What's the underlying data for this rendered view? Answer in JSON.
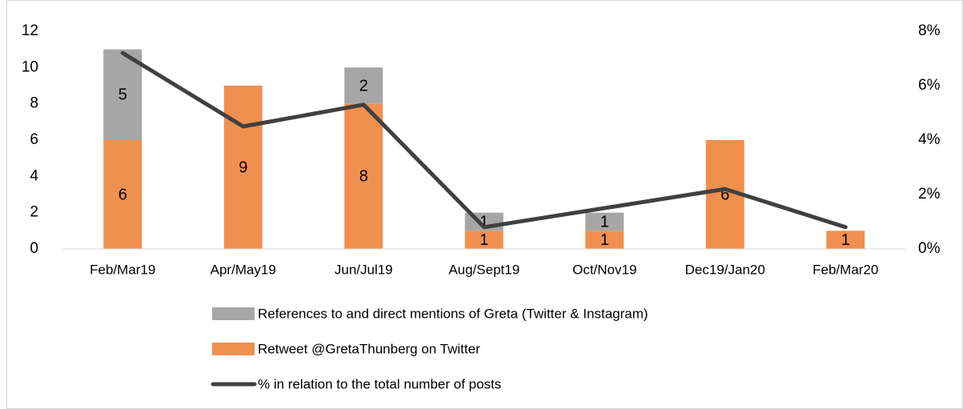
{
  "chart_data": {
    "type": "bar",
    "stacked": true,
    "categories": [
      "Feb/Mar19",
      "Apr/May19",
      "Jun/Jul19",
      "Aug/Sept19",
      "Oct/Nov19",
      "Dec19/Jan20",
      "Feb/Mar20"
    ],
    "series": [
      {
        "name": "Retweet @GretaThunberg on Twitter",
        "color": "#f0904f",
        "values": [
          6,
          9,
          8,
          1,
          1,
          6,
          1
        ]
      },
      {
        "name": "References to and direct mentions of Greta (Twitter & Instagram)",
        "color": "#a6a6a6",
        "values": [
          5,
          null,
          2,
          1,
          1,
          null,
          null
        ]
      },
      {
        "name": "% in relation to the total number of posts",
        "type": "line",
        "axis": "y2",
        "color": "#404040",
        "values": [
          7.2,
          4.5,
          5.3,
          0.8,
          1.5,
          2.2,
          0.8
        ]
      }
    ],
    "ylim": [
      0,
      12
    ],
    "yticks": [
      0,
      2,
      4,
      6,
      8,
      10,
      12
    ],
    "y2lim": [
      0,
      8
    ],
    "y2ticks": [
      {
        "value": 0,
        "label": "0%"
      },
      {
        "value": 2,
        "label": "2%"
      },
      {
        "value": 4,
        "label": "4%"
      },
      {
        "value": 6,
        "label": "6%"
      },
      {
        "value": 8,
        "label": "8%"
      }
    ],
    "grid": false,
    "legend": "bottom"
  }
}
